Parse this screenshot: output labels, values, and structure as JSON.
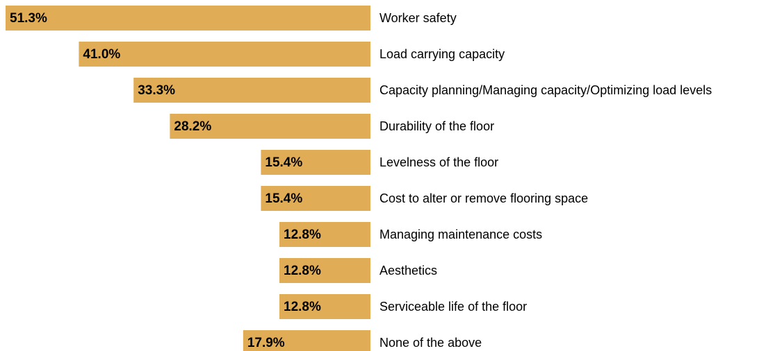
{
  "chart_data": {
    "type": "bar",
    "orientation": "horizontal-left",
    "categories": [
      "Worker safety",
      "Load carrying capacity",
      "Capacity planning/Managing capacity/Optimizing load levels",
      "Durability of the floor",
      "Levelness of the floor",
      "Cost to alter or remove flooring space",
      "Managing maintenance costs",
      "Aesthetics",
      "Serviceable life of the floor",
      "None of the above"
    ],
    "values": [
      51.3,
      41.0,
      33.3,
      28.2,
      15.4,
      15.4,
      12.8,
      12.8,
      12.8,
      17.9
    ],
    "value_labels": [
      "51.3%",
      "41.0%",
      "33.3%",
      "28.2%",
      "15.4%",
      "15.4%",
      "12.8%",
      "12.8%",
      "12.8%",
      "17.9%"
    ],
    "color": "#e0ad56"
  }
}
